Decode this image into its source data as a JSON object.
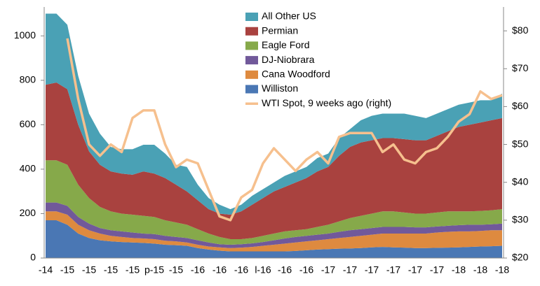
{
  "chart_data": {
    "type": "stacked-area",
    "categories": [
      "-14",
      null,
      "-15",
      null,
      "-15",
      null,
      "-15",
      null,
      "-15",
      null,
      "p-15",
      null,
      "-15",
      null,
      "-16",
      null,
      "-16",
      null,
      "-16",
      null,
      "l-16",
      null,
      "-16",
      null,
      "-16",
      null,
      "-17",
      null,
      "-17",
      null,
      "-17",
      null,
      "-17",
      null,
      "-17",
      null,
      "-17",
      null,
      "-18",
      null,
      "-18",
      null,
      "-18"
    ],
    "series": [
      {
        "name": "Williston",
        "color": "#4a77b4",
        "values": [
          170,
          170,
          150,
          110,
          90,
          80,
          75,
          72,
          70,
          68,
          65,
          60,
          58,
          55,
          45,
          38,
          33,
          30,
          30,
          30,
          30,
          30,
          30,
          32,
          35,
          38,
          40,
          42,
          43,
          45,
          48,
          50,
          48,
          47,
          45,
          45,
          46,
          47,
          48,
          50,
          52,
          53,
          55
        ]
      },
      {
        "name": "Cana Woodford",
        "color": "#de8a3f",
        "values": [
          40,
          40,
          45,
          40,
          35,
          30,
          25,
          23,
          20,
          20,
          20,
          18,
          17,
          15,
          15,
          14,
          15,
          15,
          17,
          20,
          25,
          30,
          35,
          38,
          40,
          42,
          45,
          48,
          52,
          55,
          57,
          60,
          62,
          63,
          65,
          65,
          69,
          71,
          72,
          70,
          70,
          72,
          70
        ]
      },
      {
        "name": "DJ-Niobrara",
        "color": "#71599a",
        "values": [
          40,
          40,
          40,
          35,
          30,
          25,
          25,
          25,
          25,
          22,
          23,
          22,
          20,
          20,
          20,
          18,
          14,
          15,
          15,
          16,
          17,
          20,
          23,
          25,
          25,
          25,
          25,
          28,
          30,
          30,
          30,
          30,
          30,
          30,
          28,
          28,
          27,
          27,
          28,
          30,
          28,
          27,
          30
        ]
      },
      {
        "name": "Eagle Ford",
        "color": "#86a94a",
        "values": [
          190,
          190,
          185,
          145,
          115,
          95,
          85,
          80,
          80,
          80,
          77,
          70,
          65,
          60,
          50,
          40,
          33,
          25,
          23,
          24,
          28,
          30,
          32,
          30,
          30,
          35,
          40,
          47,
          55,
          60,
          65,
          70,
          70,
          65,
          62,
          62,
          63,
          65,
          62,
          60,
          62,
          63,
          65
        ]
      },
      {
        "name": "Permian",
        "color": "#a9423f",
        "values": [
          340,
          350,
          340,
          270,
          210,
          190,
          180,
          180,
          180,
          200,
          195,
          190,
          170,
          150,
          130,
          110,
          105,
          110,
          125,
          150,
          170,
          190,
          200,
          215,
          230,
          250,
          260,
          295,
          320,
          330,
          330,
          330,
          330,
          330,
          330,
          330,
          345,
          360,
          380,
          390,
          398,
          405,
          410
        ]
      },
      {
        "name": "All Other US",
        "color": "#4aa1b5",
        "values": [
          320,
          310,
          290,
          220,
          170,
          140,
          110,
          110,
          115,
          120,
          130,
          110,
          90,
          110,
          70,
          50,
          40,
          25,
          30,
          40,
          40,
          40,
          50,
          50,
          50,
          60,
          60,
          80,
          80,
          100,
          110,
          110,
          110,
          115,
          110,
          100,
          100,
          100,
          100,
          100,
          100,
          90,
          110
        ]
      },
      {
        "name": "WTI Spot, 9 weeks ago (right)",
        "color": "#f6c08e",
        "axis": "y2",
        "type": "line",
        "values": [
          null,
          null,
          78,
          62,
          50,
          47,
          50,
          48,
          57,
          59,
          59,
          50,
          44,
          46,
          45,
          38,
          31,
          30,
          36,
          38,
          45,
          49,
          46,
          43,
          46,
          48,
          45,
          52,
          53,
          53,
          53,
          48,
          50,
          46,
          45,
          48,
          49,
          52,
          56,
          58,
          64,
          62,
          63
        ]
      }
    ],
    "ylim": [
      0,
      1130
    ],
    "yticks": [
      0,
      200,
      400,
      600,
      800,
      1000
    ],
    "y2lim": [
      20,
      86.3
    ],
    "y2ticks": [
      {
        "value": 20,
        "label": "$20"
      },
      {
        "value": 30,
        "label": "$30"
      },
      {
        "value": 40,
        "label": "$40"
      },
      {
        "value": 50,
        "label": "$50"
      },
      {
        "value": 60,
        "label": "$60"
      },
      {
        "value": 70,
        "label": "$70"
      },
      {
        "value": 80,
        "label": "$80"
      }
    ],
    "legend": "top"
  }
}
